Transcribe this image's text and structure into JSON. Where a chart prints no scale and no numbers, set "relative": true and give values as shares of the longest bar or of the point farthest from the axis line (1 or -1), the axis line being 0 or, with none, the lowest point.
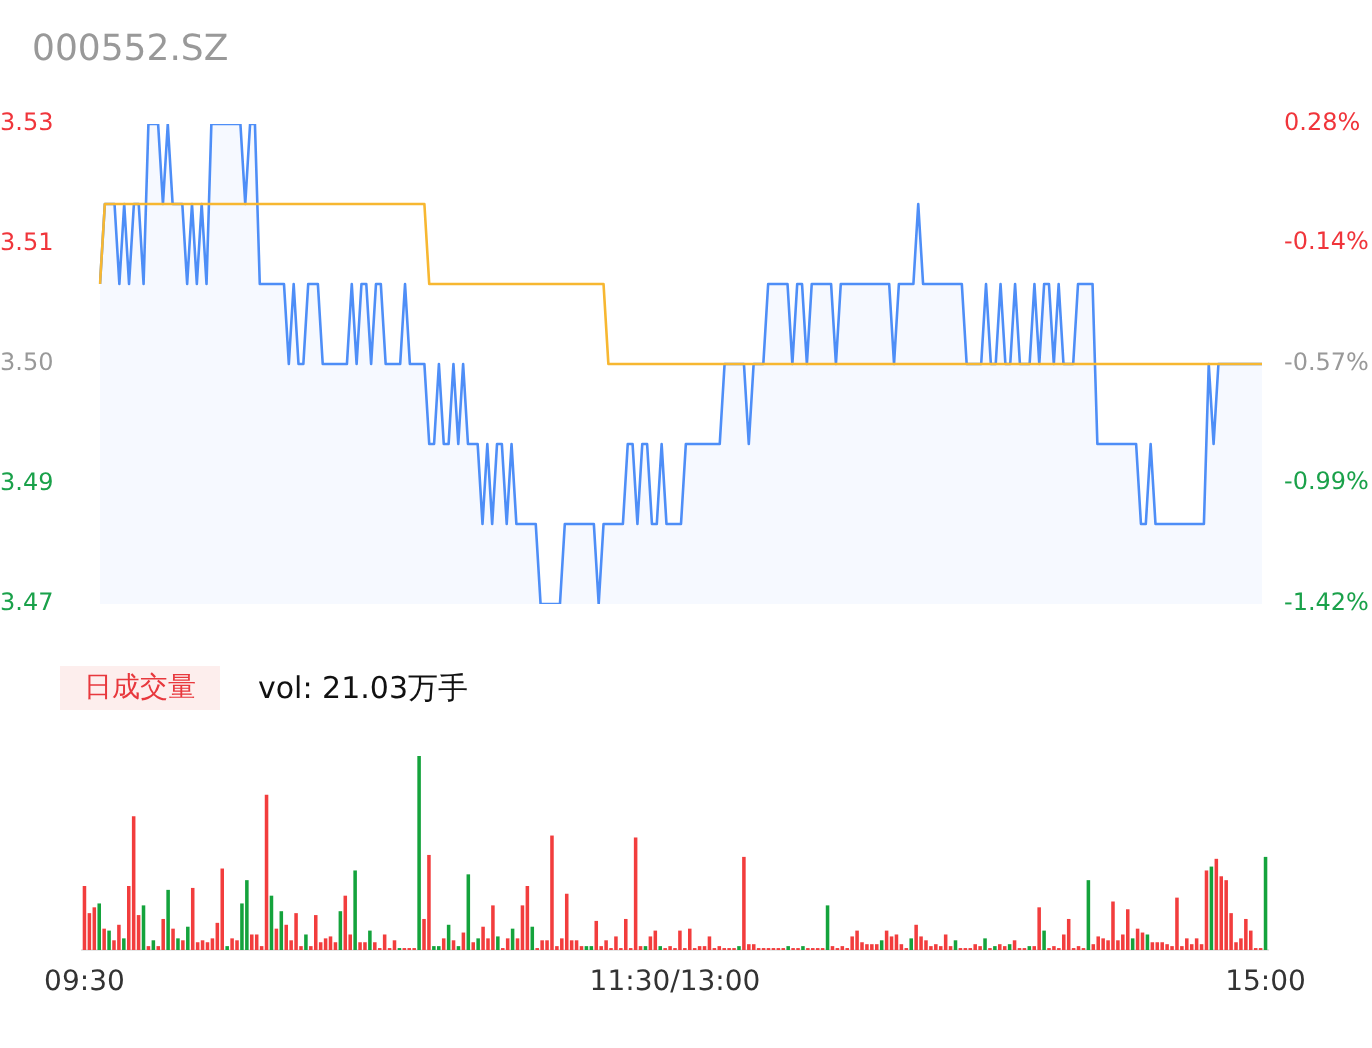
{
  "chart_data": [
    {
      "type": "line",
      "title": "000552.SZ",
      "categories": [
        null,
        null,
        null,
        null,
        null,
        null,
        null,
        null,
        null,
        null,
        null,
        null,
        null,
        null,
        null,
        null,
        null,
        null,
        null,
        null,
        null,
        null,
        null,
        null,
        null,
        null,
        null,
        null,
        null,
        null,
        null,
        null,
        null,
        null,
        null,
        null,
        null,
        null,
        null,
        null,
        null,
        null,
        null,
        null,
        null,
        null,
        null,
        null,
        null,
        null,
        null,
        null,
        null,
        null,
        null,
        null,
        null,
        null,
        null,
        null,
        null,
        null,
        null,
        null,
        null,
        null,
        null,
        null,
        null,
        null,
        null,
        null,
        null,
        null,
        null,
        null,
        null,
        null,
        null,
        null,
        null,
        null,
        null,
        null,
        null,
        null,
        null,
        null,
        null,
        null,
        null,
        null,
        null,
        null,
        null,
        null,
        null,
        null,
        null,
        null,
        null,
        null,
        null,
        null,
        null,
        null,
        null,
        null,
        null,
        null,
        null,
        null,
        null,
        null,
        null,
        null,
        null,
        null,
        null,
        null,
        null,
        null,
        null,
        null,
        null,
        null,
        null,
        null,
        null,
        null,
        null,
        null,
        null,
        null,
        null,
        null,
        null,
        null,
        null,
        null,
        null,
        null,
        null,
        null,
        null,
        null,
        null,
        null,
        null,
        null,
        null,
        null,
        null,
        null,
        null,
        null,
        null,
        null,
        null,
        null,
        null,
        null,
        null,
        null,
        null,
        null,
        null,
        null,
        null,
        null,
        null,
        null,
        null,
        null,
        null,
        null,
        null,
        null,
        null,
        null,
        null,
        null,
        null,
        null,
        null,
        null,
        null,
        null,
        null,
        null,
        null,
        null,
        null,
        null,
        null,
        null,
        null,
        null,
        null,
        null,
        null,
        null,
        null,
        null,
        null,
        null,
        null,
        null,
        null,
        null,
        null,
        null,
        null,
        null,
        null,
        null,
        null,
        null,
        null,
        null,
        null,
        null,
        null,
        null,
        null,
        null,
        null,
        null,
        null,
        null,
        null,
        null,
        null,
        null,
        null,
        null,
        null,
        null,
        null,
        null,
        null
      ],
      "ylim": [
        3.47,
        3.53
      ],
      "yticks": [
        {
          "value": 3.53,
          "label": "3.53"
        },
        {
          "value": 3.515,
          "label": "3.51"
        },
        {
          "value": 3.5,
          "label": "3.50"
        },
        {
          "value": 3.485,
          "label": "3.49"
        },
        {
          "value": 3.47,
          "label": "3.47"
        }
      ],
      "y2lim": [
        -1.42,
        0.28
      ],
      "y2ticks": [
        {
          "value": 0.28,
          "label": "0.28%"
        },
        {
          "value": -0.14,
          "label": "-0.14%"
        },
        {
          "value": -0.57,
          "label": "-0.57%"
        },
        {
          "value": -0.99,
          "label": "-0.99%"
        },
        {
          "value": -1.42,
          "label": "-1.42%"
        }
      ],
      "tick_labels": [
        "y",
        "y2"
      ],
      "grid": false,
      "legend": false,
      "marker": "none",
      "series": [
        {
          "type": "area",
          "color": "#4e8ef7",
          "values": [
            3.51,
            3.52,
            3.52,
            3.52,
            3.51,
            3.52,
            3.51,
            3.52,
            3.52,
            3.51,
            3.53,
            3.53,
            3.53,
            3.52,
            3.53,
            3.52,
            3.52,
            3.52,
            3.51,
            3.52,
            3.51,
            3.52,
            3.51,
            3.53,
            3.53,
            3.53,
            3.53,
            3.53,
            3.53,
            3.53,
            3.52,
            3.53,
            3.53,
            3.51,
            3.51,
            3.51,
            3.51,
            3.51,
            3.51,
            3.5,
            3.51,
            3.5,
            3.5,
            3.51,
            3.51,
            3.51,
            3.5,
            3.5,
            3.5,
            3.5,
            3.5,
            3.5,
            3.51,
            3.5,
            3.51,
            3.51,
            3.5,
            3.51,
            3.51,
            3.5,
            3.5,
            3.5,
            3.5,
            3.51,
            3.5,
            3.5,
            3.5,
            3.5,
            3.49,
            3.49,
            3.5,
            3.49,
            3.49,
            3.5,
            3.49,
            3.5,
            3.49,
            3.49,
            3.49,
            3.48,
            3.49,
            3.48,
            3.49,
            3.49,
            3.48,
            3.49,
            3.48,
            3.48,
            3.48,
            3.48,
            3.48,
            3.47,
            3.47,
            3.47,
            3.47,
            3.47,
            3.48,
            3.48,
            3.48,
            3.48,
            3.48,
            3.48,
            3.48,
            3.47,
            3.48,
            3.48,
            3.48,
            3.48,
            3.48,
            3.49,
            3.49,
            3.48,
            3.49,
            3.49,
            3.48,
            3.48,
            3.49,
            3.48,
            3.48,
            3.48,
            3.48,
            3.49,
            3.49,
            3.49,
            3.49,
            3.49,
            3.49,
            3.49,
            3.49,
            3.5,
            3.5,
            3.5,
            3.5,
            3.5,
            3.49,
            3.5,
            3.5,
            3.5,
            3.51,
            3.51,
            3.51,
            3.51,
            3.51,
            3.5,
            3.51,
            3.51,
            3.5,
            3.51,
            3.51,
            3.51,
            3.51,
            3.51,
            3.5,
            3.51,
            3.51,
            3.51,
            3.51,
            3.51,
            3.51,
            3.51,
            3.51,
            3.51,
            3.51,
            3.51,
            3.5,
            3.51,
            3.51,
            3.51,
            3.51,
            3.52,
            3.51,
            3.51,
            3.51,
            3.51,
            3.51,
            3.51,
            3.51,
            3.51,
            3.51,
            3.5,
            3.5,
            3.5,
            3.5,
            3.51,
            3.5,
            3.5,
            3.51,
            3.5,
            3.5,
            3.51,
            3.5,
            3.5,
            3.5,
            3.51,
            3.5,
            3.51,
            3.51,
            3.5,
            3.51,
            3.5,
            3.5,
            3.5,
            3.51,
            3.51,
            3.51,
            3.51,
            3.49,
            3.49,
            3.49,
            3.49,
            3.49,
            3.49,
            3.49,
            3.49,
            3.49,
            3.48,
            3.48,
            3.49,
            3.48,
            3.48,
            3.48,
            3.48,
            3.48,
            3.48,
            3.48,
            3.48,
            3.48,
            3.48,
            3.48,
            3.5,
            3.49,
            3.5,
            3.5,
            3.5,
            3.5,
            3.5,
            3.5,
            3.5,
            3.5,
            3.5,
            3.5
          ]
        },
        {
          "type": "line",
          "color": "#f7b731",
          "values": [
            3.51,
            3.52,
            3.52,
            3.52,
            3.52,
            3.52,
            3.52,
            3.52,
            3.52,
            3.52,
            3.52,
            3.52,
            3.52,
            3.52,
            3.52,
            3.52,
            3.52,
            3.52,
            3.52,
            3.52,
            3.52,
            3.52,
            3.52,
            3.52,
            3.52,
            3.52,
            3.52,
            3.52,
            3.52,
            3.52,
            3.52,
            3.52,
            3.52,
            3.52,
            3.52,
            3.52,
            3.52,
            3.52,
            3.52,
            3.52,
            3.52,
            3.52,
            3.52,
            3.52,
            3.52,
            3.52,
            3.52,
            3.52,
            3.52,
            3.52,
            3.52,
            3.52,
            3.52,
            3.52,
            3.52,
            3.52,
            3.52,
            3.52,
            3.52,
            3.52,
            3.52,
            3.52,
            3.52,
            3.52,
            3.52,
            3.52,
            3.52,
            3.52,
            3.51,
            3.51,
            3.51,
            3.51,
            3.51,
            3.51,
            3.51,
            3.51,
            3.51,
            3.51,
            3.51,
            3.51,
            3.51,
            3.51,
            3.51,
            3.51,
            3.51,
            3.51,
            3.51,
            3.51,
            3.51,
            3.51,
            3.51,
            3.51,
            3.51,
            3.51,
            3.51,
            3.51,
            3.51,
            3.51,
            3.51,
            3.51,
            3.51,
            3.51,
            3.51,
            3.51,
            3.51,
            3.5,
            3.5,
            3.5,
            3.5,
            3.5,
            3.5,
            3.5,
            3.5,
            3.5,
            3.5,
            3.5,
            3.5,
            3.5,
            3.5,
            3.5,
            3.5,
            3.5,
            3.5,
            3.5,
            3.5,
            3.5,
            3.5,
            3.5,
            3.5,
            3.5,
            3.5,
            3.5,
            3.5,
            3.5,
            3.5,
            3.5,
            3.5,
            3.5,
            3.5,
            3.5,
            3.5,
            3.5,
            3.5,
            3.5,
            3.5,
            3.5,
            3.5,
            3.5,
            3.5,
            3.5,
            3.5,
            3.5,
            3.5,
            3.5,
            3.5,
            3.5,
            3.5,
            3.5,
            3.5,
            3.5,
            3.5,
            3.5,
            3.5,
            3.5,
            3.5,
            3.5,
            3.5,
            3.5,
            3.5,
            3.5,
            3.5,
            3.5,
            3.5,
            3.5,
            3.5,
            3.5,
            3.5,
            3.5,
            3.5,
            3.5,
            3.5,
            3.5,
            3.5,
            3.5,
            3.5,
            3.5,
            3.5,
            3.5,
            3.5,
            3.5,
            3.5,
            3.5,
            3.5,
            3.5,
            3.5,
            3.5,
            3.5,
            3.5,
            3.5,
            3.5,
            3.5,
            3.5,
            3.5,
            3.5,
            3.5,
            3.5,
            3.5,
            3.5,
            3.5,
            3.5,
            3.5,
            3.5,
            3.5,
            3.5,
            3.5,
            3.5,
            3.5,
            3.5,
            3.5,
            3.5,
            3.5,
            3.5,
            3.5,
            3.5,
            3.5,
            3.5,
            3.5,
            3.5,
            3.5,
            3.5,
            3.5,
            3.5,
            3.5,
            3.5,
            3.5,
            3.5,
            3.5,
            3.5,
            3.5,
            3.5,
            3.5
          ]
        }
      ]
    },
    {
      "type": "bar",
      "title": "日成交量",
      "subtitle": "vol: 21.03万手",
      "relative": true,
      "grid": false,
      "legend": false,
      "categories": [
        "09:30",
        null,
        null,
        null,
        null,
        null,
        null,
        null,
        null,
        null,
        null,
        null,
        null,
        null,
        null,
        null,
        null,
        null,
        null,
        null,
        null,
        null,
        null,
        null,
        null,
        null,
        null,
        null,
        null,
        null,
        null,
        null,
        null,
        null,
        null,
        null,
        null,
        null,
        null,
        null,
        null,
        null,
        null,
        null,
        null,
        null,
        null,
        null,
        null,
        null,
        null,
        null,
        null,
        null,
        null,
        null,
        null,
        null,
        null,
        null,
        null,
        null,
        null,
        null,
        null,
        null,
        null,
        null,
        null,
        null,
        null,
        null,
        null,
        null,
        null,
        null,
        null,
        null,
        null,
        null,
        null,
        null,
        null,
        null,
        null,
        null,
        null,
        null,
        null,
        null,
        null,
        null,
        null,
        null,
        null,
        null,
        null,
        null,
        null,
        null,
        null,
        null,
        null,
        null,
        null,
        null,
        null,
        null,
        null,
        null,
        null,
        null,
        null,
        null,
        null,
        null,
        null,
        null,
        null,
        null,
        "11:30/13:00",
        null,
        null,
        null,
        null,
        null,
        null,
        null,
        null,
        null,
        null,
        null,
        null,
        null,
        null,
        null,
        null,
        null,
        null,
        null,
        null,
        null,
        null,
        null,
        null,
        null,
        null,
        null,
        null,
        null,
        null,
        null,
        null,
        null,
        null,
        null,
        null,
        null,
        null,
        null,
        null,
        null,
        null,
        null,
        null,
        null,
        null,
        null,
        null,
        null,
        null,
        null,
        null,
        null,
        null,
        null,
        null,
        null,
        null,
        null,
        null,
        null,
        null,
        null,
        null,
        null,
        null,
        null,
        null,
        null,
        null,
        null,
        null,
        null,
        null,
        null,
        null,
        null,
        null,
        null,
        null,
        null,
        null,
        null,
        null,
        null,
        null,
        null,
        null,
        null,
        null,
        null,
        null,
        null,
        null,
        null,
        null,
        null,
        null,
        null,
        null,
        null,
        null,
        null,
        null,
        null,
        null,
        null,
        null,
        null,
        null,
        null,
        null,
        null,
        null,
        null,
        null,
        null,
        null,
        null,
        "15:00"
      ],
      "values": [
        0.33,
        0.19,
        0.22,
        0.24,
        0.11,
        0.1,
        0.05,
        0.13,
        0.06,
        0.33,
        0.69,
        0.18,
        0.23,
        0.02,
        0.05,
        0.02,
        0.16,
        0.31,
        0.11,
        0.06,
        0.05,
        0.12,
        0.32,
        0.04,
        0.05,
        0.04,
        0.06,
        0.14,
        0.42,
        0.02,
        0.06,
        0.05,
        0.24,
        0.36,
        0.08,
        0.08,
        0.02,
        0.8,
        0.28,
        0.11,
        0.2,
        0.13,
        0.05,
        0.19,
        0.02,
        0.08,
        0.02,
        0.18,
        0.04,
        0.06,
        0.07,
        0.04,
        0.2,
        0.28,
        0.08,
        0.41,
        0.04,
        0.04,
        0.1,
        0.04,
        0.01,
        0.08,
        0.01,
        0.05,
        0.01,
        0.01,
        0.01,
        0.01,
        1,
        0.16,
        0.49,
        0.02,
        0.02,
        0.06,
        0.13,
        0.05,
        0.02,
        0.09,
        0.39,
        0.04,
        0.06,
        0.12,
        0.06,
        0.23,
        0.07,
        0.01,
        0.06,
        0.11,
        0.06,
        0.23,
        0.33,
        0.12,
        0.01,
        0.05,
        0.05,
        0.59,
        0.02,
        0.06,
        0.29,
        0.05,
        0.05,
        0.02,
        0.02,
        0.02,
        0.15,
        0.02,
        0.05,
        0.01,
        0.07,
        0.01,
        0.16,
        0.01,
        0.58,
        0.02,
        0.02,
        0.07,
        0.1,
        0.02,
        0.01,
        0.02,
        0.01,
        0.1,
        0.01,
        0.11,
        0.01,
        0.02,
        0.02,
        0.07,
        0.01,
        0.02,
        0.01,
        0.01,
        0.01,
        0.02,
        0.48,
        0.03,
        0.03,
        0.01,
        0.01,
        0.01,
        0.01,
        0.01,
        0.01,
        0.02,
        0.01,
        0.01,
        0.02,
        0.01,
        0.01,
        0.01,
        0.01,
        0.23,
        0.02,
        0.01,
        0.02,
        0.01,
        0.07,
        0.1,
        0.04,
        0.03,
        0.03,
        0.03,
        0.05,
        0.1,
        0.07,
        0.08,
        0.03,
        0.01,
        0.06,
        0.13,
        0.07,
        0.05,
        0.02,
        0.03,
        0.02,
        0.08,
        0.02,
        0.05,
        0.01,
        0.01,
        0.01,
        0.03,
        0.02,
        0.06,
        0.01,
        0.02,
        0.03,
        0.02,
        0.03,
        0.05,
        0.01,
        0.01,
        0.02,
        0.02,
        0.22,
        0.1,
        0.01,
        0.02,
        0.01,
        0.08,
        0.16,
        0.01,
        0.02,
        0.01,
        0.36,
        0.03,
        0.07,
        0.06,
        0.05,
        0.25,
        0.05,
        0.08,
        0.21,
        0.06,
        0.11,
        0.09,
        0.08,
        0.04,
        0.04,
        0.04,
        0.03,
        0.02,
        0.27,
        0.02,
        0.06,
        0.03,
        0.06,
        0.03,
        0.41,
        0.43,
        0.47,
        0.38,
        0.36,
        0.19,
        0.04,
        0.06,
        0.16,
        0.1,
        0.01,
        0.01,
        0.48
      ],
      "colors": [
        "#f23d3d",
        "#f23d3d",
        "#f23d3d",
        "#14a33c",
        "#f23d3d",
        "#14a33c",
        "#f23d3d",
        "#f23d3d",
        "#14a33c",
        "#f23d3d",
        "#f23d3d",
        "#f23d3d",
        "#14a33c",
        "#f23d3d",
        "#14a33c",
        "#f23d3d",
        "#f23d3d",
        "#14a33c",
        "#f23d3d",
        "#14a33c",
        "#f23d3d",
        "#14a33c",
        "#f23d3d",
        "#f23d3d",
        "#f23d3d",
        "#f23d3d",
        "#f23d3d",
        "#f23d3d",
        "#f23d3d",
        "#14a33c",
        "#f23d3d",
        "#f23d3d",
        "#14a33c",
        "#14a33c",
        "#f23d3d",
        "#f23d3d",
        "#f23d3d",
        "#f23d3d",
        "#14a33c",
        "#f23d3d",
        "#14a33c",
        "#f23d3d",
        "#f23d3d",
        "#f23d3d",
        "#f23d3d",
        "#14a33c",
        "#f23d3d",
        "#f23d3d",
        "#f23d3d",
        "#f23d3d",
        "#f23d3d",
        "#f23d3d",
        "#14a33c",
        "#f23d3d",
        "#f23d3d",
        "#14a33c",
        "#f23d3d",
        "#f23d3d",
        "#14a33c",
        "#f23d3d",
        "#f23d3d",
        "#f23d3d",
        "#f23d3d",
        "#f23d3d",
        "#14a33c",
        "#f23d3d",
        "#f23d3d",
        "#f23d3d",
        "#14a33c",
        "#f23d3d",
        "#f23d3d",
        "#14a33c",
        "#14a33c",
        "#f23d3d",
        "#14a33c",
        "#f23d3d",
        "#14a33c",
        "#f23d3d",
        "#14a33c",
        "#f23d3d",
        "#14a33c",
        "#f23d3d",
        "#f23d3d",
        "#f23d3d",
        "#14a33c",
        "#f23d3d",
        "#f23d3d",
        "#14a33c",
        "#f23d3d",
        "#f23d3d",
        "#f23d3d",
        "#14a33c",
        "#f23d3d",
        "#f23d3d",
        "#f23d3d",
        "#f23d3d",
        "#f23d3d",
        "#f23d3d",
        "#f23d3d",
        "#f23d3d",
        "#f23d3d",
        "#f23d3d",
        "#14a33c",
        "#14a33c",
        "#f23d3d",
        "#f23d3d",
        "#f23d3d",
        "#f23d3d",
        "#f23d3d",
        "#f23d3d",
        "#f23d3d",
        "#f23d3d",
        "#f23d3d",
        "#f23d3d",
        "#14a33c",
        "#f23d3d",
        "#f23d3d",
        "#14a33c",
        "#f23d3d",
        "#f23d3d",
        "#f23d3d",
        "#f23d3d",
        "#f23d3d",
        "#f23d3d",
        "#f23d3d",
        "#f23d3d",
        "#f23d3d",
        "#f23d3d",
        "#f23d3d",
        "#f23d3d",
        "#f23d3d",
        "#f23d3d",
        "#f23d3d",
        "#14a33c",
        "#f23d3d",
        "#f23d3d",
        "#f23d3d",
        "#f23d3d",
        "#f23d3d",
        "#f23d3d",
        "#f23d3d",
        "#f23d3d",
        "#f23d3d",
        "#14a33c",
        "#f23d3d",
        "#f23d3d",
        "#14a33c",
        "#f23d3d",
        "#f23d3d",
        "#f23d3d",
        "#f23d3d",
        "#14a33c",
        "#f23d3d",
        "#f23d3d",
        "#f23d3d",
        "#f23d3d",
        "#f23d3d",
        "#f23d3d",
        "#f23d3d",
        "#f23d3d",
        "#f23d3d",
        "#f23d3d",
        "#14a33c",
        "#f23d3d",
        "#f23d3d",
        "#f23d3d",
        "#f23d3d",
        "#f23d3d",
        "#14a33c",
        "#f23d3d",
        "#f23d3d",
        "#f23d3d",
        "#f23d3d",
        "#f23d3d",
        "#f23d3d",
        "#f23d3d",
        "#f23d3d",
        "#14a33c",
        "#f23d3d",
        "#f23d3d",
        "#f23d3d",
        "#f23d3d",
        "#f23d3d",
        "#14a33c",
        "#f23d3d",
        "#14a33c",
        "#f23d3d",
        "#f23d3d",
        "#14a33c",
        "#f23d3d",
        "#f23d3d",
        "#f23d3d",
        "#14a33c",
        "#f23d3d",
        "#f23d3d",
        "#14a33c",
        "#f23d3d",
        "#f23d3d",
        "#f23d3d",
        "#f23d3d",
        "#f23d3d",
        "#f23d3d",
        "#f23d3d",
        "#f23d3d",
        "#14a33c",
        "#f23d3d",
        "#f23d3d",
        "#f23d3d",
        "#f23d3d",
        "#f23d3d",
        "#f23d3d",
        "#f23d3d",
        "#f23d3d",
        "#14a33c",
        "#f23d3d",
        "#f23d3d",
        "#14a33c",
        "#f23d3d",
        "#f23d3d",
        "#f23d3d",
        "#f23d3d",
        "#f23d3d",
        "#f23d3d",
        "#f23d3d",
        "#f23d3d",
        "#f23d3d",
        "#f23d3d",
        "#f23d3d",
        "#f23d3d",
        "#14a33c",
        "#f23d3d",
        "#f23d3d",
        "#f23d3d",
        "#f23d3d",
        "#f23d3d",
        "#f23d3d",
        "#f23d3d",
        "#f23d3d",
        "#f23d3d",
        "#f23d3d",
        "#14a33c"
      ]
    }
  ]
}
